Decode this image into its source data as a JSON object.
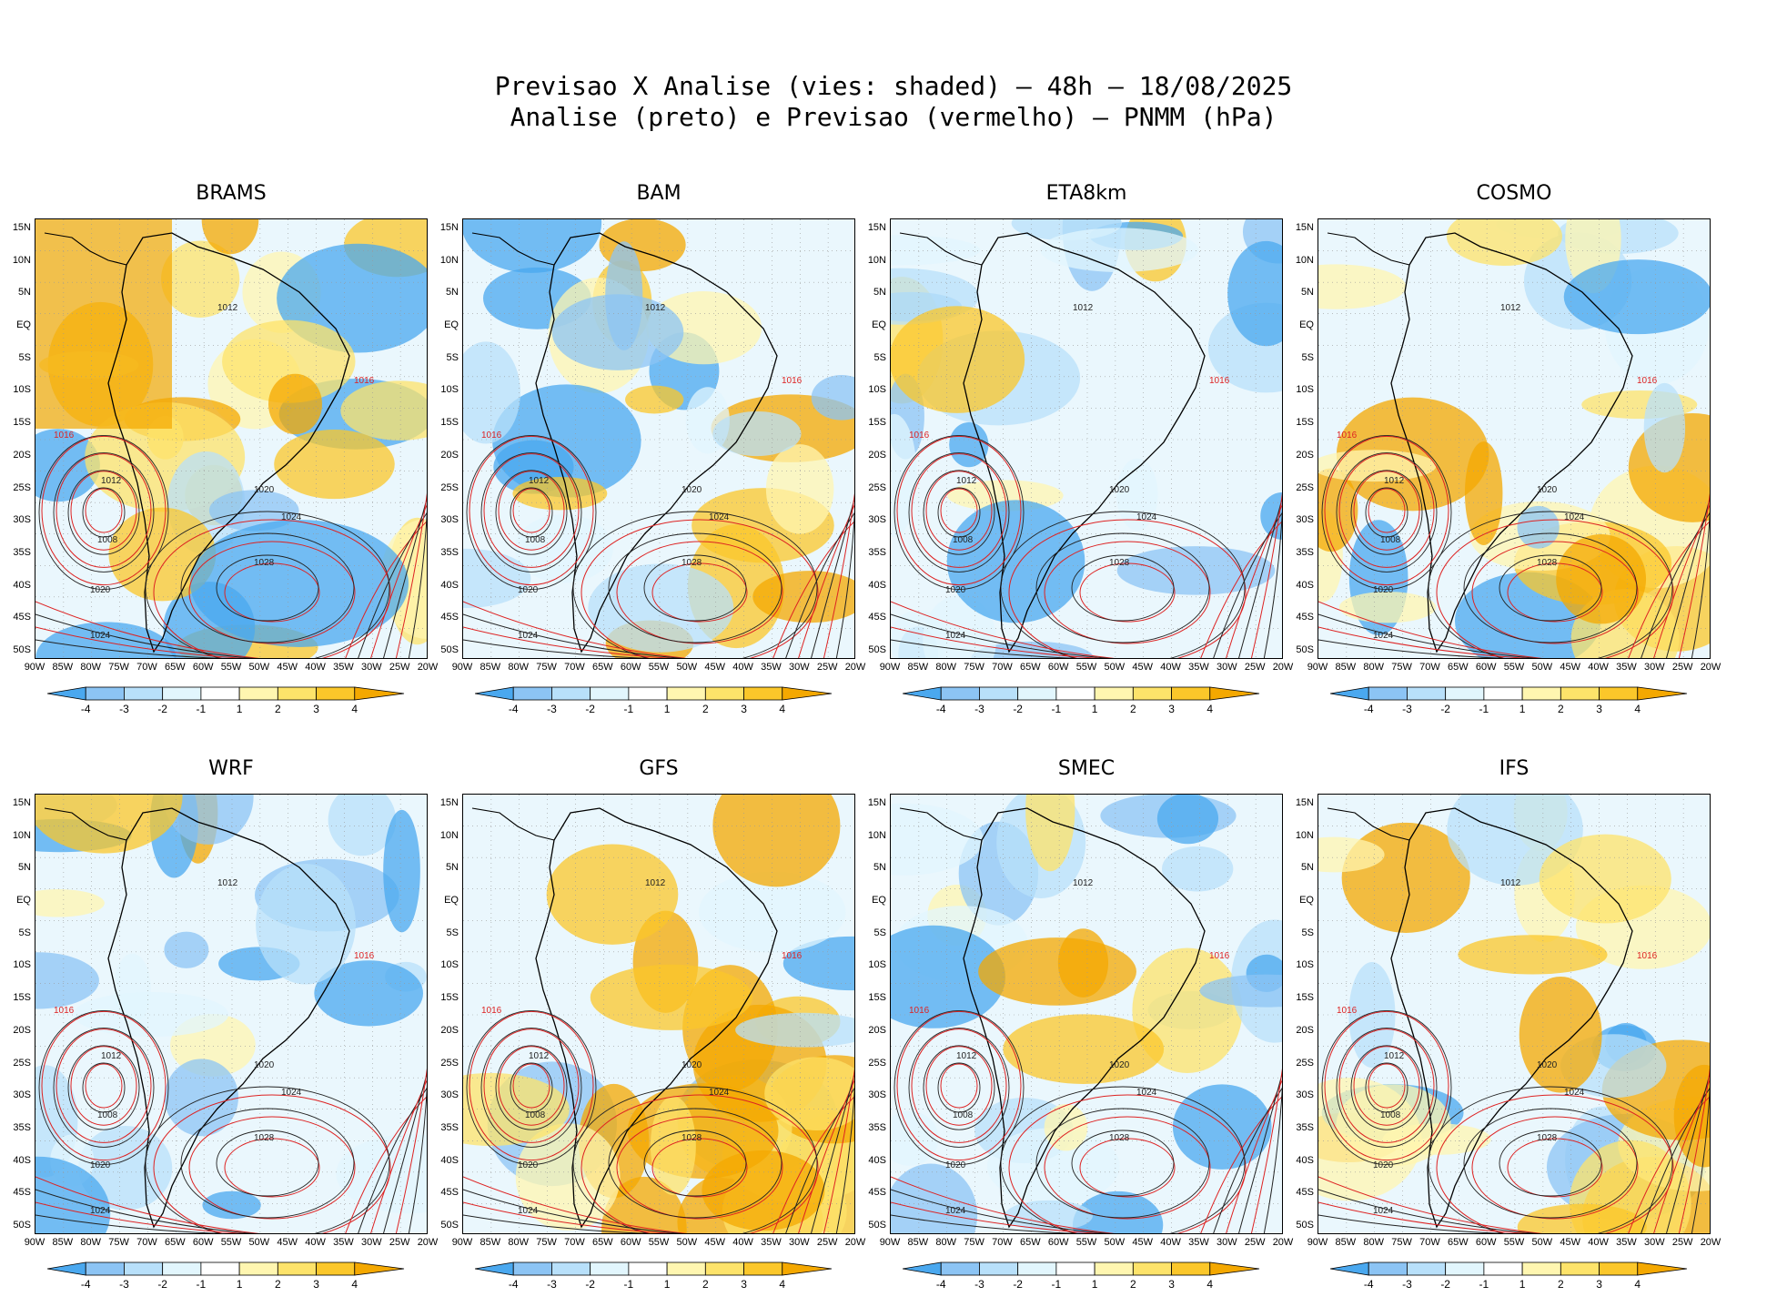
{
  "header": {
    "line1": "Previsao X Analise (vies: shaded) – 48h – 18/08/2025",
    "line2": "Analise (preto) e Previsao (vermelho) – PNMM (hPa)"
  },
  "lat_labels": [
    "15N",
    "10N",
    "5N",
    "EQ",
    "5S",
    "10S",
    "15S",
    "20S",
    "25S",
    "30S",
    "35S",
    "40S",
    "45S",
    "50S"
  ],
  "lon_labels": [
    "90W",
    "85W",
    "80W",
    "75W",
    "70W",
    "65W",
    "60W",
    "55W",
    "50W",
    "45W",
    "40W",
    "35W",
    "30W",
    "25W",
    "20W"
  ],
  "colorbar": {
    "labels": [
      "-4",
      "-3",
      "-2",
      "-1",
      "1",
      "2",
      "3",
      "4"
    ],
    "colors": [
      "#4aa8ef",
      "#8cc4f4",
      "#b8e0fa",
      "#e2f6fd",
      "#ffffff",
      "#fff6b0",
      "#fde36a",
      "#fbc72a",
      "#f4a800"
    ]
  },
  "contour_labels": {
    "low": "1008",
    "mid": "1012",
    "mid2": "1016",
    "high": "1020",
    "high2": "1024",
    "high3": "1028"
  },
  "panels": [
    {
      "name": "BRAMS",
      "bias": "warm"
    },
    {
      "name": "BAM",
      "bias": "mixed"
    },
    {
      "name": "ETA8km",
      "bias": "cold"
    },
    {
      "name": "COSMO",
      "bias": "mixed"
    },
    {
      "name": "WRF",
      "bias": "cold"
    },
    {
      "name": "GFS",
      "bias": "mixed"
    },
    {
      "name": "SMEC",
      "bias": "cold"
    },
    {
      "name": "IFS",
      "bias": "mixed"
    }
  ]
}
